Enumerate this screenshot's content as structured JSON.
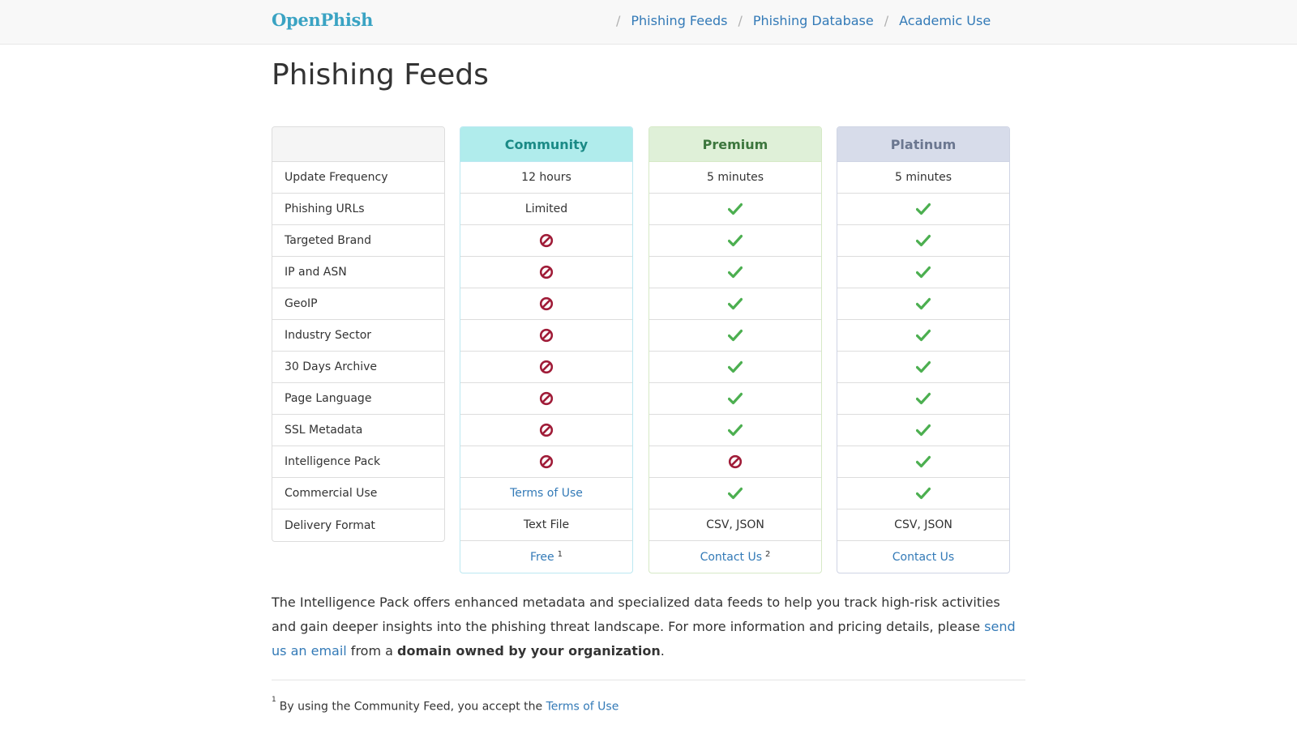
{
  "nav": {
    "brand": "OpenPhish",
    "links": [
      "Phishing Feeds",
      "Phishing Database",
      "Academic Use"
    ],
    "separator": "/"
  },
  "page_title": "Phishing Feeds",
  "plans": {
    "headers": [
      "",
      "Community",
      "Premium",
      "Platinum"
    ],
    "features": [
      "Update Frequency",
      "Phishing URLs",
      "Targeted Brand",
      "IP and ASN",
      "GeoIP",
      "Industry Sector",
      "30 Days Archive",
      "Page Language",
      "SSL Metadata",
      "Intelligence Pack",
      "Commercial Use",
      "Delivery Format"
    ],
    "community": {
      "update_frequency": "12 hours",
      "phishing_urls": "Limited",
      "commercial_use": "Terms of Use",
      "delivery_format": "Text File",
      "price": "Free",
      "price_note": "1"
    },
    "premium": {
      "update_frequency": "5 minutes",
      "delivery_format": "CSV, JSON",
      "price": "Contact Us",
      "price_note": "2"
    },
    "platinum": {
      "update_frequency": "5 minutes",
      "delivery_format": "CSV, JSON",
      "price": "Contact Us"
    },
    "icons": {
      "included": "check-icon",
      "excluded": "ban-icon",
      "included_color": "#4caf50",
      "excluded_color": "#a01c38"
    }
  },
  "description": {
    "text1": "The Intelligence Pack offers enhanced metadata and specialized data feeds to help you track high-risk activities and gain deeper insights into the phishing threat landscape. For more information and pricing details, please ",
    "link": "send us an email",
    "text2": " from a ",
    "bold": "domain owned by your organization",
    "text3": "."
  },
  "footnotes": {
    "note1_marker": "1",
    "note1_text": "By using the Community Feed, you accept the ",
    "note1_link": "Terms of Use"
  }
}
